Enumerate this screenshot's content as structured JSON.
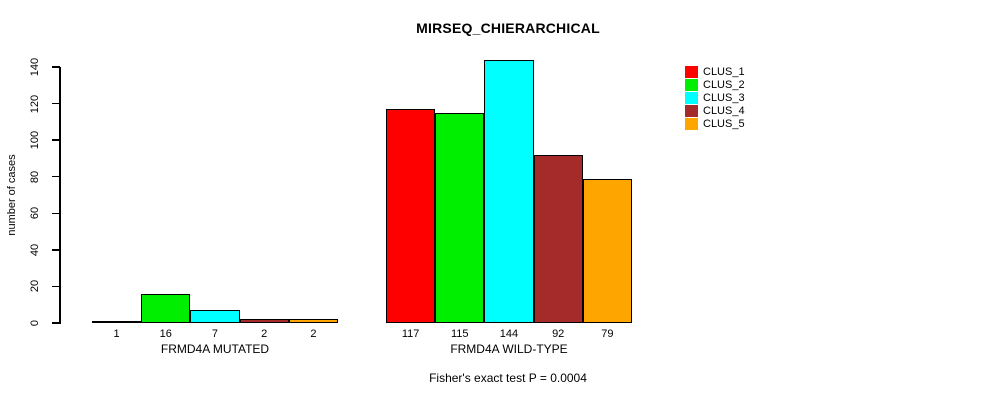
{
  "title": "MIRSEQ_CHIERARCHICAL",
  "annotation": "Fisher's exact test P = 0.0004",
  "chart_data": {
    "type": "bar",
    "title": "MIRSEQ_CHIERARCHICAL",
    "ylabel": "number of cases",
    "ylim": [
      0,
      140
    ],
    "yticks": [
      0,
      20,
      40,
      60,
      80,
      100,
      120,
      140
    ],
    "grid": false,
    "legend_position": "top-right",
    "series": [
      {
        "name": "CLUS_1",
        "color": "#FF0000"
      },
      {
        "name": "CLUS_2",
        "color": "#00EE00"
      },
      {
        "name": "CLUS_3",
        "color": "#00FFFF"
      },
      {
        "name": "CLUS_4",
        "color": "#A52A2A"
      },
      {
        "name": "CLUS_5",
        "color": "#FFA500"
      }
    ],
    "groups": [
      {
        "label": "FRMD4A MUTATED",
        "values": [
          1,
          16,
          7,
          2,
          2
        ]
      },
      {
        "label": "FRMD4A WILD-TYPE",
        "values": [
          117,
          115,
          144,
          92,
          79
        ]
      }
    ],
    "annotation": "Fisher's exact test P = 0.0004"
  }
}
